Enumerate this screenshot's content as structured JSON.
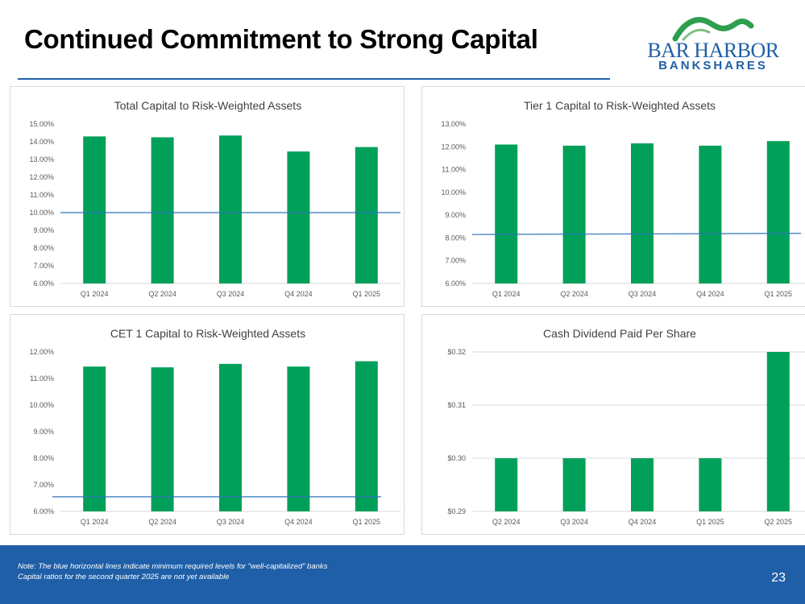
{
  "page": {
    "title": "Continued Commitment to Strong Capital",
    "page_number": "23"
  },
  "logo": {
    "line1": "BAR HARBOR",
    "line2": "BANKSHARES",
    "green": "#2e9e4f",
    "blue": "#1f5fa8"
  },
  "footer": {
    "note_line1": "Note:  The blue horizontal lines indicate minimum required levels for “well-capitalized” banks",
    "note_line2": "Capital ratios for the second quarter 2025 are not yet available"
  },
  "colors": {
    "bar": "#00a05a",
    "reference_line": "#2e75b6",
    "axis_text": "#595959",
    "grid": "#d9d9d9",
    "footer_bg": "#1f5fa8"
  },
  "chart_data": [
    {
      "type": "bar",
      "title": "Total Capital to Risk-Weighted Assets",
      "categories": [
        "Q1 2024",
        "Q2 2024",
        "Q3 2024",
        "Q4 2024",
        "Q1 2025"
      ],
      "values": [
        14.3,
        14.25,
        14.35,
        13.45,
        13.7
      ],
      "ylim": [
        6,
        15
      ],
      "yticks": [
        6,
        7,
        8,
        9,
        10,
        11,
        12,
        13,
        14,
        15
      ],
      "ytick_labels": [
        "6.00%",
        "7.00%",
        "8.00%",
        "9.00%",
        "10.00%",
        "11.00%",
        "12.00%",
        "13.00%",
        "14.00%",
        "15.00%"
      ],
      "reference_line": {
        "value": 10.0,
        "label": "well-capitalized minimum"
      },
      "grid": false
    },
    {
      "type": "bar",
      "title": "Tier 1 Capital to Risk-Weighted Assets",
      "categories": [
        "Q1 2024",
        "Q2 2024",
        "Q3 2024",
        "Q4 2024",
        "Q1 2025"
      ],
      "values": [
        12.1,
        12.05,
        12.15,
        12.05,
        12.25
      ],
      "ylim": [
        6,
        13
      ],
      "yticks": [
        6,
        7,
        8,
        9,
        10,
        11,
        12,
        13
      ],
      "ytick_labels": [
        "6.00%",
        "7.00%",
        "8.00%",
        "9.00%",
        "10.00%",
        "11.00%",
        "12.00%",
        "13.00%"
      ],
      "reference_line": {
        "value": 8.15,
        "value_end": 8.2,
        "label": "well-capitalized minimum"
      },
      "grid": false
    },
    {
      "type": "bar",
      "title": "CET 1 Capital to Risk-Weighted Assets",
      "categories": [
        "Q1 2024",
        "Q2 2024",
        "Q3 2024",
        "Q4 2024",
        "Q1 2025"
      ],
      "values": [
        11.45,
        11.42,
        11.55,
        11.45,
        11.65
      ],
      "ylim": [
        6,
        12
      ],
      "yticks": [
        6,
        7,
        8,
        9,
        10,
        11,
        12
      ],
      "ytick_labels": [
        "6.00%",
        "7.00%",
        "8.00%",
        "9.00%",
        "10.00%",
        "11.00%",
        "12.00%"
      ],
      "reference_line": {
        "value": 6.55,
        "label": "well-capitalized minimum"
      },
      "grid": false
    },
    {
      "type": "bar",
      "title": "Cash Dividend Paid Per Share",
      "categories": [
        "Q2 2024",
        "Q3 2024",
        "Q4 2024",
        "Q1 2025",
        "Q2 2025"
      ],
      "values": [
        0.3,
        0.3,
        0.3,
        0.3,
        0.32
      ],
      "ylim": [
        0.29,
        0.32
      ],
      "yticks": [
        0.29,
        0.3,
        0.31,
        0.32
      ],
      "ytick_labels": [
        "$0.29",
        "$0.30",
        "$0.31",
        "$0.32"
      ],
      "reference_line": null,
      "grid": true
    }
  ]
}
